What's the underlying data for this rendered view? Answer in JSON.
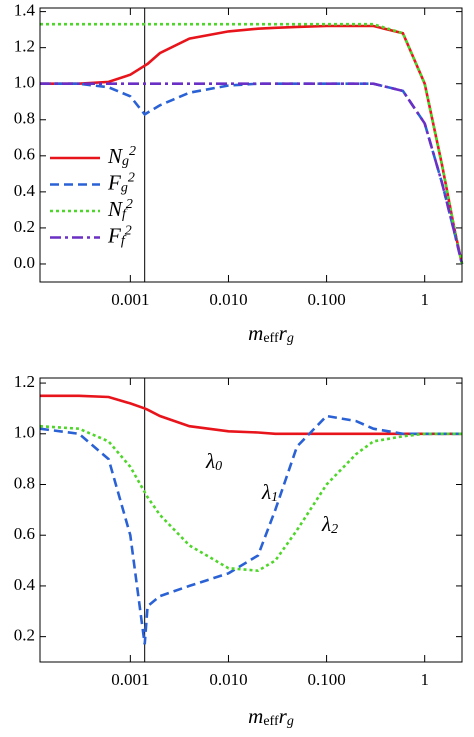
{
  "chart_data": [
    {
      "type": "line",
      "xlabel": "m_{eff}r_{g}",
      "xscale": "log",
      "legend": "lower left",
      "vline": 0.0014,
      "x": [
        0.00012,
        0.0003,
        0.0006,
        0.001,
        0.0014,
        0.0015,
        0.002,
        0.004,
        0.01,
        0.02,
        0.03,
        0.05,
        0.1,
        0.2,
        0.3,
        0.6,
        1,
        1.5,
        2,
        2.4
      ],
      "xlim": [
        0.00012,
        2.4
      ],
      "xticks": [
        0.001,
        {
          "value": 0.01,
          "label": "0.010"
        },
        {
          "value": 0.1,
          "label": "0.100"
        },
        1
      ],
      "ylim": [
        -0.1,
        1.42
      ],
      "yticks": [
        {
          "value": 0,
          "label": "0.0"
        },
        0.2,
        0.4,
        0.6,
        0.8,
        {
          "value": 1,
          "label": "1.0"
        },
        1.2,
        1.4
      ],
      "series": [
        {
          "name": "N_{g}^{2}",
          "color": "#e8141b",
          "style": "solid",
          "values": [
            1.0,
            1.0,
            1.01,
            1.05,
            1.1,
            1.11,
            1.17,
            1.25,
            1.29,
            1.305,
            1.31,
            1.315,
            1.32,
            1.32,
            1.32,
            1.28,
            1.0,
            0.55,
            0.2,
            0.0
          ]
        },
        {
          "name": "F_{g}^{2}",
          "color": "#2a62d6",
          "style": "dashed",
          "values": [
            1.0,
            1.0,
            0.98,
            0.93,
            0.83,
            0.84,
            0.88,
            0.95,
            0.99,
            1.0,
            1.0,
            1.0,
            1.0,
            1.0,
            1.0,
            0.96,
            0.78,
            0.45,
            0.18,
            0.0
          ]
        },
        {
          "name": "N_{f}^{2}",
          "color": "#4fd62a",
          "style": "dotted",
          "values": [
            1.33,
            1.33,
            1.33,
            1.33,
            1.33,
            1.33,
            1.33,
            1.33,
            1.33,
            1.33,
            1.33,
            1.33,
            1.33,
            1.33,
            1.33,
            1.28,
            1.0,
            0.55,
            0.2,
            0.0
          ]
        },
        {
          "name": "F_{f}^{2}",
          "color": "#6a2fc4",
          "style": "dashdot",
          "values": [
            1.0,
            1.0,
            1.0,
            1.0,
            1.0,
            1.0,
            1.0,
            1.0,
            1.0,
            1.0,
            1.0,
            1.0,
            1.0,
            1.0,
            1.0,
            0.96,
            0.78,
            0.45,
            0.18,
            0.0
          ]
        }
      ]
    },
    {
      "type": "line",
      "xlabel": "m_{eff}r_{g}",
      "xscale": "log",
      "vline": 0.0014,
      "x": [
        0.00012,
        0.0003,
        0.0006,
        0.001,
        0.0014,
        0.0015,
        0.002,
        0.004,
        0.01,
        0.02,
        0.03,
        0.05,
        0.1,
        0.2,
        0.3,
        0.6,
        1,
        1.5,
        2,
        2.4
      ],
      "xlim": [
        0.00012,
        2.4
      ],
      "xticks": [
        0.001,
        {
          "value": 0.01,
          "label": "0.010"
        },
        {
          "value": 0.1,
          "label": "0.100"
        },
        1
      ],
      "ylim": [
        0.1,
        1.22
      ],
      "yticks": [
        0.2,
        0.4,
        0.6,
        0.8,
        {
          "value": 1,
          "label": "1.0"
        },
        1.2
      ],
      "annotations": [
        "λ_{0}",
        "λ_{1}",
        "λ_{2}"
      ],
      "series": [
        {
          "color": "#e8141b",
          "style": "solid",
          "values": [
            1.15,
            1.15,
            1.145,
            1.12,
            1.1,
            1.095,
            1.07,
            1.03,
            1.01,
            1.005,
            1.0,
            1.0,
            1.0,
            1.0,
            1.0,
            1.0,
            1.0,
            1.0,
            1.0,
            1.0
          ]
        },
        {
          "color": "#2a62d6",
          "style": "dashed",
          "values": [
            1.02,
            1.0,
            0.9,
            0.6,
            0.17,
            0.32,
            0.36,
            0.4,
            0.45,
            0.52,
            0.7,
            0.95,
            1.07,
            1.05,
            1.02,
            1.0,
            1.0,
            1.0,
            1.0,
            1.0
          ]
        },
        {
          "color": "#4fd62a",
          "style": "dotted",
          "values": [
            1.03,
            1.02,
            0.97,
            0.87,
            0.77,
            0.75,
            0.68,
            0.56,
            0.47,
            0.46,
            0.5,
            0.62,
            0.8,
            0.92,
            0.97,
            0.99,
            1.0,
            1.0,
            1.0,
            1.0
          ]
        }
      ]
    }
  ]
}
